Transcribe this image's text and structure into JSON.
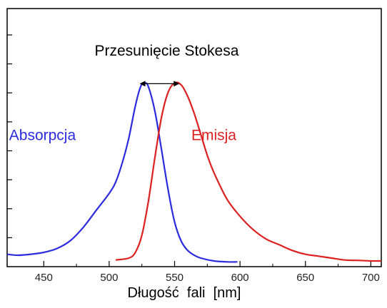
{
  "chart_data": {
    "type": "line",
    "title": "",
    "xlabel": "Długość  fali  [nm]",
    "ylabel": "",
    "xlim": [
      422,
      708
    ],
    "ylim": [
      0,
      1.0
    ],
    "grid": false,
    "legend": "none",
    "x_ticks": [
      450,
      500,
      550,
      600,
      650,
      700
    ],
    "y_tick_count": 8,
    "annotation": {
      "text": "Przesunięcie Stokesa",
      "arrow_from_x": 526,
      "arrow_to_x": 551,
      "arrow_y": 0.95
    },
    "series": [
      {
        "name": "Absorpcja",
        "color": "#2b2be0",
        "label_at": {
          "x": 449,
          "y": 0.68
        },
        "points": [
          [
            422,
            0.05
          ],
          [
            430,
            0.045
          ],
          [
            440,
            0.05
          ],
          [
            450,
            0.06
          ],
          [
            460,
            0.08
          ],
          [
            470,
            0.12
          ],
          [
            480,
            0.19
          ],
          [
            490,
            0.28
          ],
          [
            500,
            0.37
          ],
          [
            505,
            0.43
          ],
          [
            510,
            0.53
          ],
          [
            515,
            0.66
          ],
          [
            520,
            0.83
          ],
          [
            524,
            0.93
          ],
          [
            527,
            0.95
          ],
          [
            530,
            0.93
          ],
          [
            535,
            0.8
          ],
          [
            540,
            0.6
          ],
          [
            545,
            0.39
          ],
          [
            550,
            0.22
          ],
          [
            555,
            0.12
          ],
          [
            560,
            0.07
          ],
          [
            565,
            0.045
          ],
          [
            570,
            0.03
          ],
          [
            580,
            0.015
          ],
          [
            590,
            0.01
          ],
          [
            598,
            0.01
          ]
        ]
      },
      {
        "name": "Emisja",
        "color": "#dd2020",
        "label_at": {
          "x": 580,
          "y": 0.68
        },
        "points": [
          [
            505,
            0.02
          ],
          [
            515,
            0.03
          ],
          [
            520,
            0.06
          ],
          [
            525,
            0.15
          ],
          [
            530,
            0.33
          ],
          [
            535,
            0.56
          ],
          [
            540,
            0.77
          ],
          [
            545,
            0.9
          ],
          [
            550,
            0.95
          ],
          [
            555,
            0.94
          ],
          [
            560,
            0.88
          ],
          [
            565,
            0.79
          ],
          [
            570,
            0.68
          ],
          [
            575,
            0.57
          ],
          [
            580,
            0.48
          ],
          [
            590,
            0.34
          ],
          [
            600,
            0.25
          ],
          [
            610,
            0.18
          ],
          [
            620,
            0.13
          ],
          [
            630,
            0.1
          ],
          [
            640,
            0.07
          ],
          [
            650,
            0.05
          ],
          [
            660,
            0.04
          ],
          [
            670,
            0.03
          ],
          [
            680,
            0.02
          ],
          [
            690,
            0.018
          ],
          [
            700,
            0.015
          ],
          [
            708,
            0.015
          ]
        ]
      }
    ]
  }
}
